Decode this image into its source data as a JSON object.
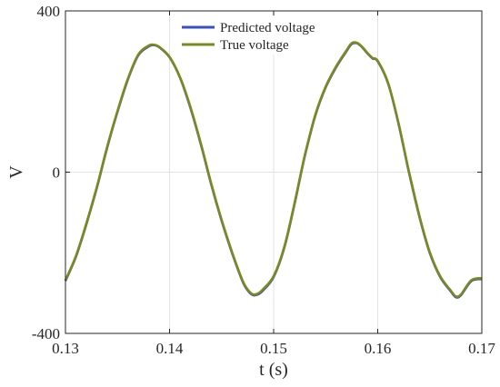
{
  "chart_data": {
    "type": "line",
    "title": "",
    "xlabel": "t (s)",
    "ylabel": "V",
    "xlim": [
      0.13,
      0.17
    ],
    "ylim": [
      -400,
      400
    ],
    "xticks": [
      "0.13",
      "0.14",
      "0.15",
      "0.16",
      "0.17"
    ],
    "yticks": [
      "-400",
      "0",
      "400"
    ],
    "grid": true,
    "legend_position": "top-center",
    "series": [
      {
        "name": "Predicted voltage",
        "color": "#3a4fc4",
        "x": [
          0.13,
          0.131,
          0.132,
          0.133,
          0.134,
          0.135,
          0.136,
          0.137,
          0.138,
          0.1385,
          0.139,
          0.14,
          0.141,
          0.142,
          0.143,
          0.144,
          0.145,
          0.146,
          0.147,
          0.1475,
          0.148,
          0.1485,
          0.149,
          0.15,
          0.151,
          0.152,
          0.153,
          0.154,
          0.155,
          0.156,
          0.157,
          0.1575,
          0.158,
          0.1585,
          0.159,
          0.1595,
          0.16,
          0.161,
          0.162,
          0.163,
          0.164,
          0.165,
          0.166,
          0.167,
          0.1675,
          0.168,
          0.169,
          0.17
        ],
        "values": [
          -270,
          -210,
          -130,
          -40,
          60,
          150,
          230,
          290,
          312,
          315,
          310,
          285,
          235,
          160,
          70,
          -30,
          -120,
          -200,
          -270,
          -293,
          -305,
          -303,
          -293,
          -260,
          -190,
          -80,
          40,
          140,
          210,
          260,
          300,
          318,
          320,
          310,
          295,
          282,
          275,
          220,
          120,
          0,
          -110,
          -200,
          -260,
          -295,
          -310,
          -305,
          -270,
          -265
        ]
      },
      {
        "name": "True voltage",
        "color": "#7a8a1e",
        "x": [
          0.13,
          0.131,
          0.132,
          0.133,
          0.134,
          0.135,
          0.136,
          0.137,
          0.138,
          0.1385,
          0.139,
          0.14,
          0.141,
          0.142,
          0.143,
          0.144,
          0.145,
          0.146,
          0.147,
          0.1475,
          0.148,
          0.1485,
          0.149,
          0.15,
          0.151,
          0.152,
          0.153,
          0.154,
          0.155,
          0.156,
          0.157,
          0.1575,
          0.158,
          0.1585,
          0.159,
          0.1595,
          0.16,
          0.161,
          0.162,
          0.163,
          0.164,
          0.165,
          0.166,
          0.167,
          0.1675,
          0.168,
          0.169,
          0.17
        ],
        "values": [
          -268,
          -208,
          -128,
          -38,
          62,
          152,
          232,
          292,
          314,
          316,
          311,
          286,
          236,
          162,
          72,
          -28,
          -118,
          -198,
          -268,
          -291,
          -303,
          -301,
          -290,
          -258,
          -188,
          -78,
          42,
          142,
          212,
          262,
          302,
          320,
          321,
          311,
          296,
          283,
          276,
          221,
          121,
          2,
          -108,
          -198,
          -258,
          -293,
          -308,
          -303,
          -268,
          -263
        ]
      }
    ]
  }
}
